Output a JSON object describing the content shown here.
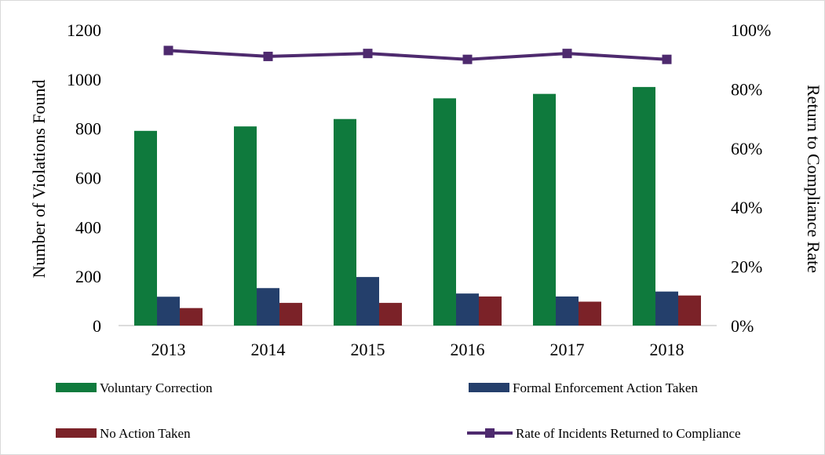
{
  "chart_data": {
    "type": "bar",
    "categories": [
      "2013",
      "2014",
      "2015",
      "2016",
      "2017",
      "2018"
    ],
    "series": [
      {
        "name": "Voluntary Correction",
        "type": "bar",
        "axis": "left",
        "color": "#0f7a3d",
        "values": [
          790,
          808,
          838,
          922,
          940,
          968
        ]
      },
      {
        "name": "Formal Enforcement Action Taken",
        "type": "bar",
        "axis": "left",
        "color": "#243f6b",
        "values": [
          117,
          152,
          197,
          130,
          118,
          138
        ]
      },
      {
        "name": "No Action Taken",
        "type": "bar",
        "axis": "left",
        "color": "#7b2228",
        "values": [
          71,
          92,
          92,
          118,
          97,
          122
        ]
      },
      {
        "name": "Rate of Incidents Returned to Compliance",
        "type": "line",
        "axis": "right",
        "color": "#4e2a6e",
        "values": [
          0.93,
          0.91,
          0.92,
          0.9,
          0.92,
          0.9
        ]
      }
    ],
    "ylabel": "Number of Violations Found",
    "y2label": "Return to Compliance Rate",
    "ylim": [
      0,
      1200
    ],
    "y2lim": [
      0,
      1
    ],
    "yticks": [
      "0",
      "200",
      "400",
      "600",
      "800",
      "1000",
      "1200"
    ],
    "y2ticks": [
      "0%",
      "20%",
      "40%",
      "60%",
      "80%",
      "100%"
    ],
    "grid": false,
    "legend_position": "bottom"
  }
}
